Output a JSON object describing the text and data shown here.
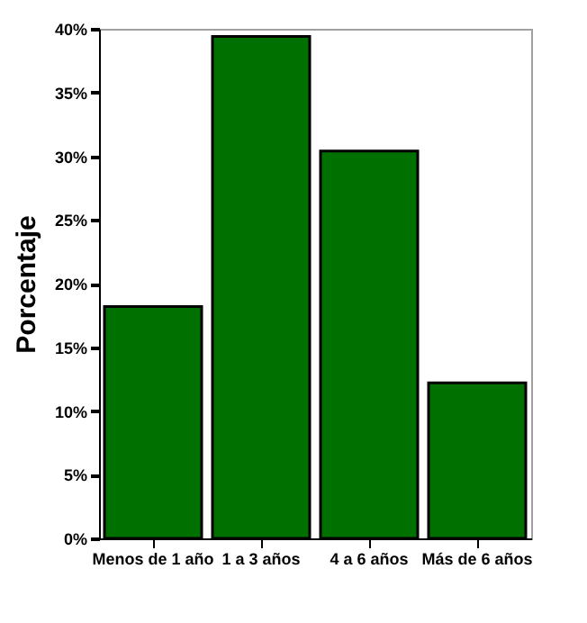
{
  "chart_data": {
    "type": "bar",
    "ylabel": "Porcentaje",
    "categories": [
      "Menos de 1 año",
      "1 a 3 años",
      "4 a 6 años",
      "Más de 6 años"
    ],
    "values": [
      18.2,
      39.4,
      30.4,
      12.2
    ],
    "color": "#007100",
    "ylim": [
      0,
      40
    ],
    "yticks": [
      {
        "value": 0,
        "label": "0%"
      },
      {
        "value": 5,
        "label": "5%"
      },
      {
        "value": 10,
        "label": "10%"
      },
      {
        "value": 15,
        "label": "15%"
      },
      {
        "value": 20,
        "label": "20%"
      },
      {
        "value": 25,
        "label": "25%"
      },
      {
        "value": 30,
        "label": "30%"
      },
      {
        "value": 35,
        "label": "35%"
      },
      {
        "value": 40,
        "label": "40%"
      }
    ],
    "grid": false
  }
}
